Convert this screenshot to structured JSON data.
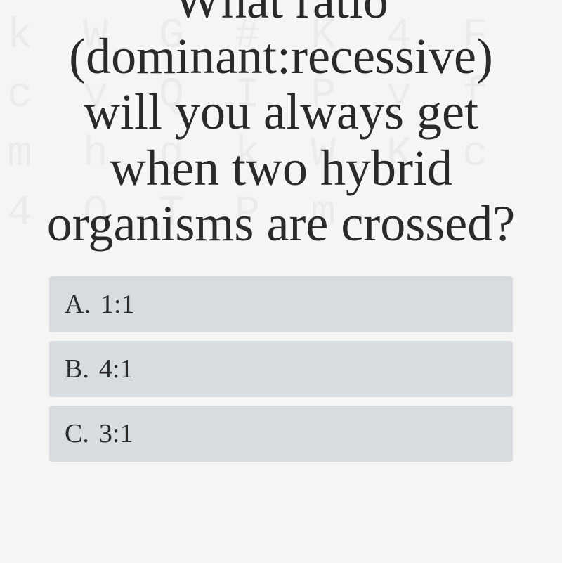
{
  "quiz": {
    "question_text": "What ratio (dominant:recessive) will you always get when two hybrid organisms are crossed?",
    "question_fontsize": 72,
    "question_color": "#2a2a2a",
    "answers": [
      {
        "letter": "A.",
        "text": "1:1"
      },
      {
        "letter": "B.",
        "text": "4:1"
      },
      {
        "letter": "C.",
        "text": "3:1"
      }
    ],
    "answer_bg": "#d7dce0",
    "answer_fontsize": 38,
    "answer_text_color": "#2a2a2a",
    "page_bg": "#f5f5f3",
    "bg_letter_color": "rgba(0,0,0,0.04)"
  },
  "background_glyphs": "k W G # K 4 F c y Q I P y f m h g k W K c 4 Q T P m"
}
